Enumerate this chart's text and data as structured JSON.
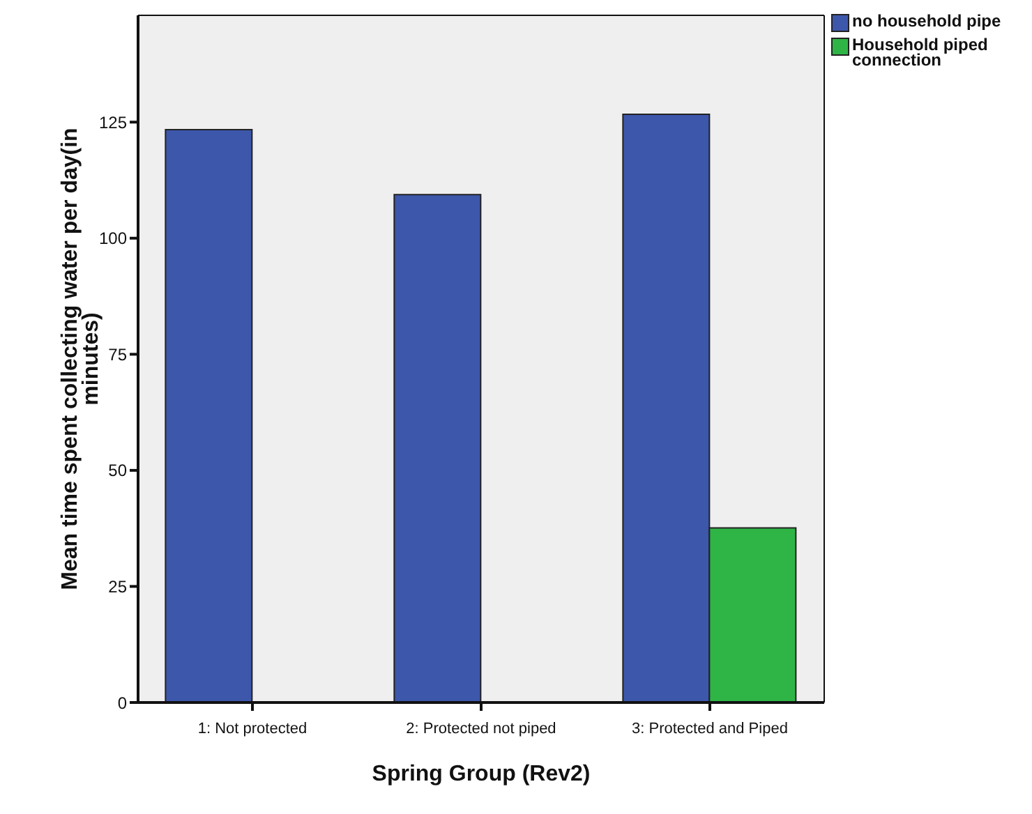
{
  "chart_data": {
    "type": "bar",
    "xlabel": "Spring Group (Rev2)",
    "ylabel": "Mean time spent collecting water per day(in minutes)",
    "categories": [
      "1: Not protected",
      "2: Protected not piped",
      "3: Protected and Piped"
    ],
    "series": [
      {
        "name": "no household pipe",
        "color": "#3d57ab",
        "values": [
          123.4,
          109.4,
          126.7
        ]
      },
      {
        "name": "Household piped connection",
        "color": "#2fb546",
        "values": [
          null,
          null,
          37.6
        ]
      }
    ],
    "ylim": [
      0,
      148
    ],
    "yticks": [
      0,
      25,
      50,
      75,
      100,
      125
    ],
    "grid": false,
    "legend": "top right"
  }
}
